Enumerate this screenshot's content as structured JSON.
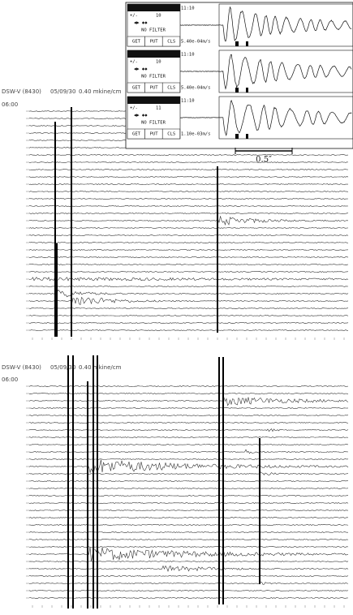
{
  "panels": [
    {
      "station": "DSW-V (8430)",
      "date": "05/09/30",
      "scale": "0.40 mkine/cm",
      "start": "06:00"
    },
    {
      "station": "DSW-V (8430)",
      "date": "05/09/30",
      "scale": "0.40 mkine/cm",
      "start": "06:00"
    }
  ],
  "inset": {
    "sign": "+/-",
    "channels": [
      {
        "time": "11:10",
        "gain": "10",
        "filter": "NO FILTER",
        "buttons": [
          "GET",
          "PUT",
          "CLS"
        ],
        "amplitude": "5.40e-04m/s"
      },
      {
        "time": "11:10",
        "gain": "10",
        "filter": "NO FILTER",
        "buttons": [
          "GET",
          "PUT",
          "CLS"
        ],
        "amplitude": "5.40e-04m/s"
      },
      {
        "time": "11:10",
        "gain": "11",
        "filter": "NO FILTER",
        "buttons": [
          "GET",
          "PUT",
          "CLS"
        ],
        "amplitude": "1.10e-03m/s"
      }
    ],
    "scale_bar": "0.5″"
  }
}
